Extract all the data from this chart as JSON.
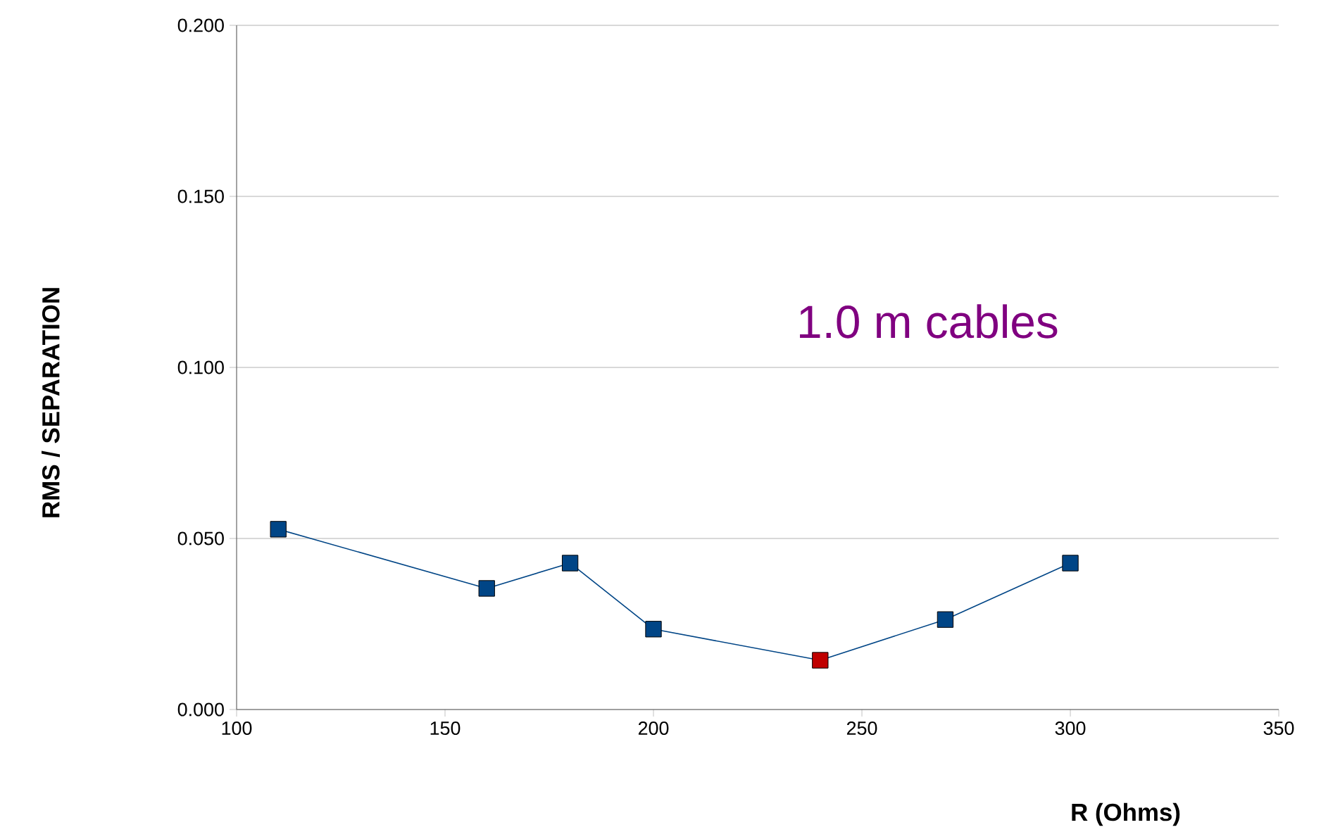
{
  "chart_data": {
    "type": "line",
    "xlabel": "R (Ohms)",
    "ylabel": "RMS / SEPARATION",
    "annotations": [
      "1.0 m cables"
    ],
    "x": [
      110,
      160,
      180,
      200,
      240,
      270,
      300
    ],
    "series": [
      {
        "color": "#004586",
        "colors": [
          "#004586",
          "#004586",
          "#004586",
          "#004586",
          "#c00000",
          "#004586",
          "#004586"
        ],
        "values": [
          0.0527,
          0.0354,
          0.0428,
          0.0235,
          0.0144,
          0.0263,
          0.0428
        ]
      }
    ],
    "xlim": [
      100,
      350
    ],
    "xticks": [
      100,
      150,
      200,
      250,
      300,
      350
    ],
    "ylim": [
      0,
      0.2
    ],
    "yticks": [
      {
        "value": 0,
        "label": "0.000"
      },
      {
        "value": 0.05,
        "label": "0.050"
      },
      {
        "value": 0.1,
        "label": "0.100"
      },
      {
        "value": 0.15,
        "label": "0.150"
      },
      {
        "value": 0.2,
        "label": "0.200"
      }
    ],
    "grid": "y",
    "marker": "square",
    "line_style": "solid"
  }
}
